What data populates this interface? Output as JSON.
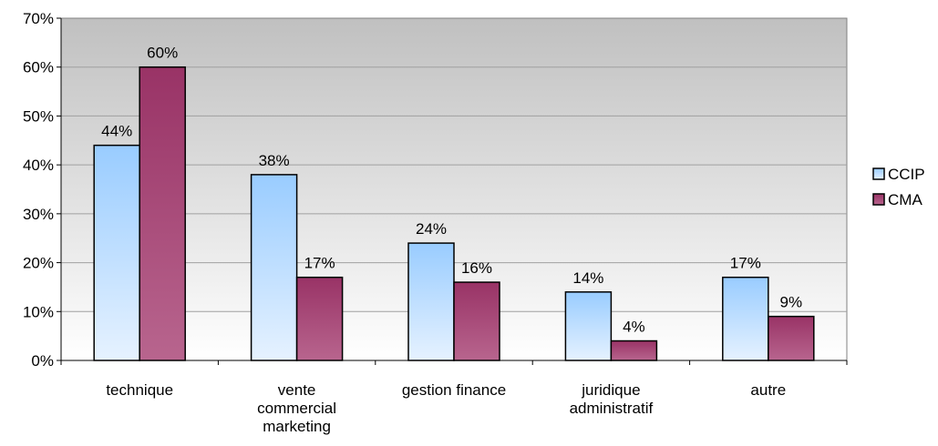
{
  "chart_data": {
    "type": "bar",
    "categories": [
      [
        "technique"
      ],
      [
        "vente",
        "commercial",
        "marketing"
      ],
      [
        "gestion finance"
      ],
      [
        "juridique",
        "administratif"
      ],
      [
        "autre"
      ]
    ],
    "series": [
      {
        "name": "CCIP",
        "values": [
          44,
          38,
          24,
          14,
          17
        ],
        "data_labels": [
          "44%",
          "38%",
          "24%",
          "14%",
          "17%"
        ],
        "color_top": "#99ccff",
        "color_bottom": "#e6f2ff"
      },
      {
        "name": "CMA",
        "values": [
          60,
          17,
          16,
          4,
          9
        ],
        "data_labels": [
          "60%",
          "17%",
          "16%",
          "4%",
          "9%"
        ],
        "color_top": "#993366",
        "color_bottom": "#b8658e"
      }
    ],
    "ylim": [
      0,
      70
    ],
    "yticks": [
      "0%",
      "10%",
      "20%",
      "30%",
      "40%",
      "50%",
      "60%",
      "70%"
    ],
    "grid": true,
    "legend_position": "right",
    "plot_background": [
      "#c0c0c0",
      "#ffffff"
    ],
    "title": "",
    "xlabel": "",
    "ylabel": ""
  }
}
